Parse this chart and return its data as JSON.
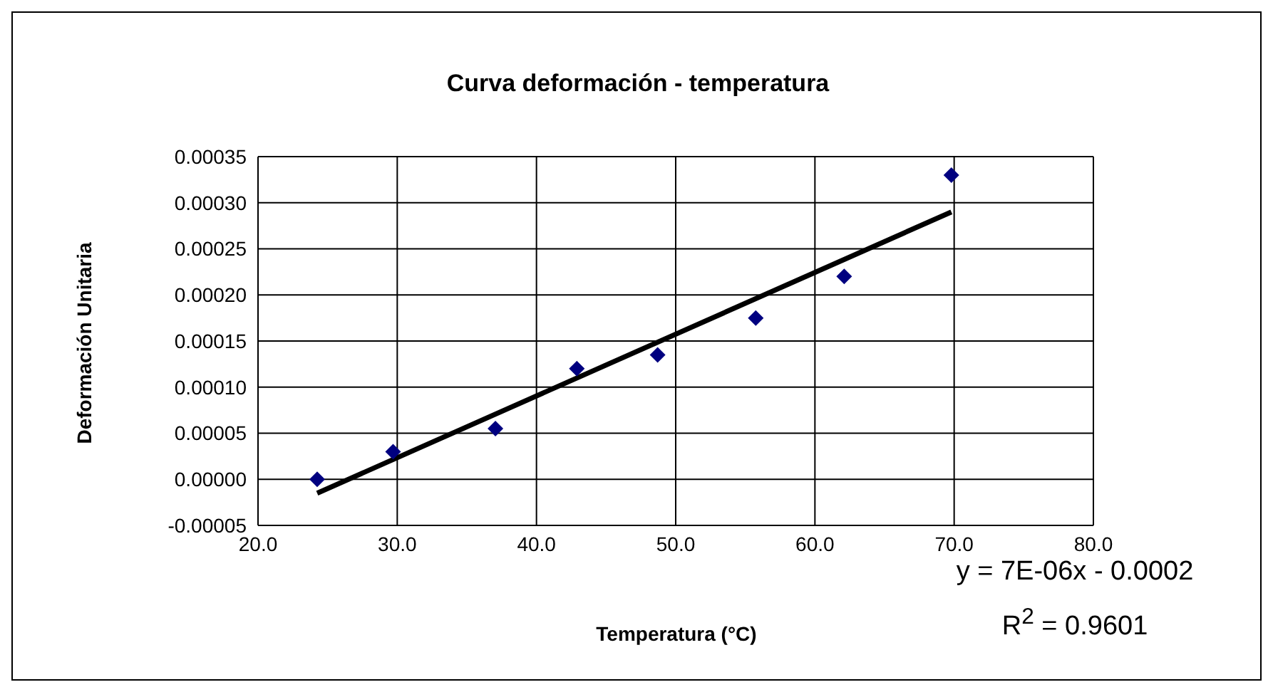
{
  "chart_data": {
    "type": "scatter",
    "title": "Curva deformación - temperatura",
    "xlabel": "Temperatura (°C)",
    "ylabel": "Deformación Unitaria",
    "series": [
      {
        "type": "scatter",
        "color": "#000080",
        "marker": "diamond",
        "x": [
          24.25,
          29.7,
          37.05,
          42.9,
          48.7,
          55.75,
          62.1,
          69.8
        ],
        "values": [
          0,
          3e-05,
          5.5e-05,
          0.00012,
          0.000135,
          0.000175,
          0.00022,
          0.00033
        ]
      },
      {
        "type": "line",
        "color": "#000000",
        "marker": "none",
        "line_style": "solid",
        "x": [
          24.25,
          69.8
        ],
        "values": [
          -1.5e-05,
          0.00029
        ]
      }
    ],
    "xlim": [
      20,
      80
    ],
    "xticks": [
      {
        "value": 20,
        "label": "20.0"
      },
      {
        "value": 30,
        "label": "30.0"
      },
      {
        "value": 40,
        "label": "40.0"
      },
      {
        "value": 50,
        "label": "50.0"
      },
      {
        "value": 60,
        "label": "60.0"
      },
      {
        "value": 70,
        "label": "70.0"
      },
      {
        "value": 80,
        "label": "80.0"
      }
    ],
    "ylim": [
      -5e-05,
      0.00035
    ],
    "yticks": [
      {
        "value": -5e-05,
        "label": "-0.00005"
      },
      {
        "value": 0,
        "label": "0.00000"
      },
      {
        "value": 5e-05,
        "label": "0.00005"
      },
      {
        "value": 0.0001,
        "label": "0.00010"
      },
      {
        "value": 0.00015,
        "label": "0.00015"
      },
      {
        "value": 0.0002,
        "label": "0.00020"
      },
      {
        "value": 0.00025,
        "label": "0.00025"
      },
      {
        "value": 0.0003,
        "label": "0.00030"
      },
      {
        "value": 0.00035,
        "label": "0.00035"
      }
    ],
    "grid": true,
    "annotations": [
      "y = 7E-06x - 0.0002",
      "R$^{2}$ = 0.9601"
    ]
  }
}
